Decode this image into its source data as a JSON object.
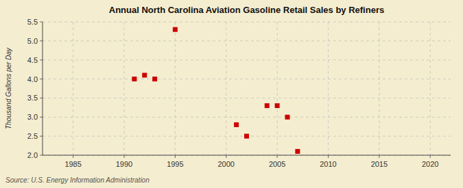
{
  "chart_data": {
    "type": "scatter",
    "title": "Annual North Carolina Aviation Gasoline Retail Sales by Refiners",
    "ylabel": "Thousand Gallons per Day",
    "annotations": [
      "Source: U.S. Energy Information Administration"
    ],
    "x": [
      1991,
      1992,
      1993,
      1995,
      2001,
      2002,
      2004,
      2005,
      2006,
      2007
    ],
    "values": [
      4.0,
      4.1,
      4.0,
      5.3,
      2.8,
      2.5,
      3.3,
      3.3,
      3.0,
      2.1
    ],
    "color": "#cc0000",
    "marker": "square",
    "xlim": [
      1982,
      2022
    ],
    "ylim": [
      2.0,
      5.5
    ],
    "xticks": [
      1985,
      1990,
      1995,
      2000,
      2005,
      2010,
      2015,
      2020
    ],
    "yticks": [
      {
        "value": 2.0,
        "label": "2.0"
      },
      {
        "value": 2.5,
        "label": "2.5"
      },
      {
        "value": 3.0,
        "label": "3.0"
      },
      {
        "value": 3.5,
        "label": "3.5"
      },
      {
        "value": 4.0,
        "label": "4.0"
      },
      {
        "value": 4.5,
        "label": "4.5"
      },
      {
        "value": 5.0,
        "label": "5.0"
      },
      {
        "value": 5.5,
        "label": "5.5"
      }
    ],
    "grid": true
  }
}
